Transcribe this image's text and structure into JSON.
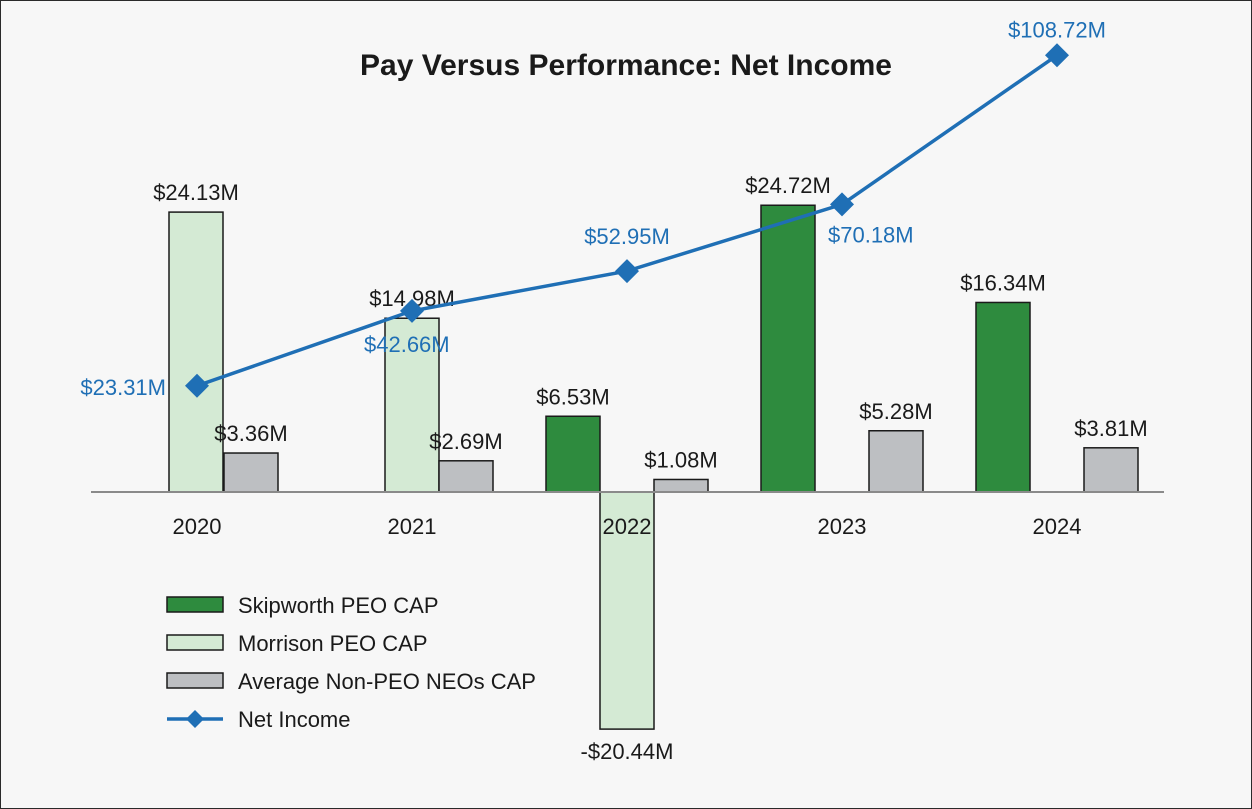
{
  "chart_data": {
    "type": "bar",
    "title": "Pay Versus Performance: Net Income",
    "xlabel": "",
    "ylabel": "",
    "categories": [
      "2020",
      "2021",
      "2022",
      "2023",
      "2024"
    ],
    "series": [
      {
        "name": "Skipworth PEO CAP",
        "type": "bar",
        "color": "#2e8b3e",
        "values": [
          null,
          null,
          6.53,
          24.72,
          16.34
        ],
        "labels": [
          null,
          null,
          "$6.53M",
          "$24.72M",
          "$16.34M"
        ]
      },
      {
        "name": "Morrison PEO CAP",
        "type": "bar",
        "color": "#d4ead4",
        "values": [
          24.13,
          14.98,
          -20.44,
          null,
          null
        ],
        "labels": [
          "$24.13M",
          "$14.98M",
          "-$20.44M",
          null,
          null
        ]
      },
      {
        "name": "Average Non-PEO NEOs CAP",
        "type": "bar",
        "color": "#bdbfc2",
        "values": [
          3.36,
          2.69,
          1.08,
          5.28,
          3.81
        ],
        "labels": [
          "$3.36M",
          "$2.69M",
          "$1.08M",
          "$5.28M",
          "$3.81M"
        ]
      },
      {
        "name": "Net Income",
        "type": "line",
        "color": "#1f6fb5",
        "marker": "diamond",
        "values": [
          23.31,
          42.66,
          52.95,
          70.18,
          108.72
        ],
        "labels": [
          "$23.31M",
          "$42.66M",
          "$52.95M",
          "$70.18M",
          "$108.72M"
        ]
      }
    ],
    "axes": {
      "bar_axis_range": [
        -21,
        26
      ],
      "line_axis_range": [
        0,
        130
      ]
    },
    "grid": false,
    "legend_position": "bottom-left"
  }
}
